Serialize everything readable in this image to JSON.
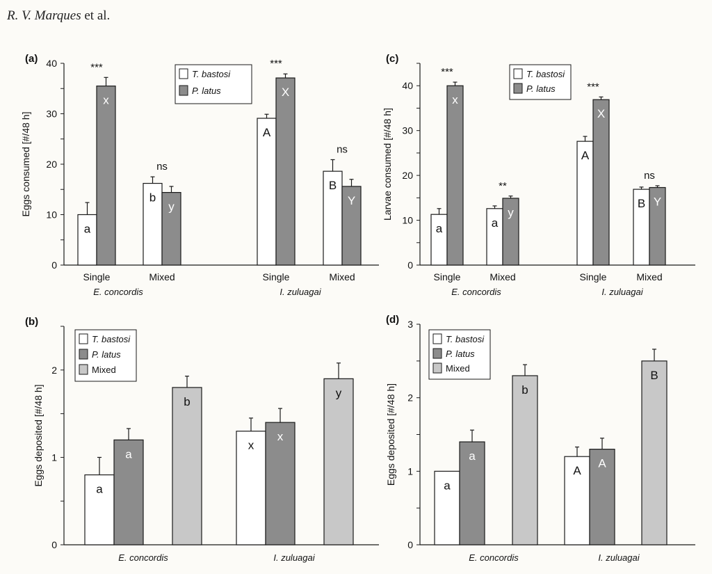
{
  "header": {
    "author": "R. V. Marques",
    "suffix": " et al."
  },
  "colors": {
    "t_bastosi": "#ffffff",
    "p_latus": "#8c8c8c",
    "mixed": "#c8c8c8",
    "stroke": "#1a1a1a",
    "background": "#fcfbf7"
  },
  "chart_data": [
    {
      "panel": "(a)",
      "type": "bar",
      "title": "",
      "ylabel": "Eggs consumed [#/48 h]",
      "ylim": [
        0,
        40
      ],
      "yticks": [
        0,
        10,
        20,
        30,
        40
      ],
      "groups": [
        "E. concordis",
        "I. zuluagai"
      ],
      "categories": [
        "Single",
        "Mixed",
        "Single",
        "Mixed"
      ],
      "legend": [
        {
          "name": "T. bastosi",
          "color": "#ffffff"
        },
        {
          "name": "P. latus",
          "color": "#8c8c8c"
        }
      ],
      "series": [
        {
          "name": "T. bastosi",
          "values": [
            10,
            16.2,
            29.1,
            18.6
          ],
          "errors": [
            2.4,
            1.3,
            0.8,
            2.3
          ],
          "labels": [
            "a",
            "b",
            "A",
            "B"
          ]
        },
        {
          "name": "P. latus",
          "values": [
            35.5,
            14.4,
            37.1,
            15.6
          ],
          "errors": [
            1.7,
            1.2,
            0.8,
            1.4
          ],
          "labels": [
            "x",
            "y",
            "X",
            "Y"
          ]
        }
      ],
      "significance": [
        "***",
        "ns",
        "***",
        "ns"
      ]
    },
    {
      "panel": "(c)",
      "type": "bar",
      "title": "",
      "ylabel": "Larvae consumed [#/48 h]",
      "ylim": [
        0,
        45
      ],
      "yticks": [
        0,
        10,
        20,
        30,
        40
      ],
      "groups": [
        "E. concordis",
        "I. zuluagai"
      ],
      "categories": [
        "Single",
        "Mixed",
        "Single",
        "Mixed"
      ],
      "legend": [
        {
          "name": "T. bastosi",
          "color": "#ffffff"
        },
        {
          "name": "P. latus",
          "color": "#8c8c8c"
        }
      ],
      "series": [
        {
          "name": "T. bastosi",
          "values": [
            11.3,
            12.6,
            27.6,
            16.9
          ],
          "errors": [
            1.3,
            0.6,
            1.1,
            0.5
          ],
          "labels": [
            "a",
            "a",
            "A",
            "B"
          ]
        },
        {
          "name": "P. latus",
          "values": [
            40,
            14.9,
            36.9,
            17.3
          ],
          "errors": [
            0.8,
            0.5,
            0.6,
            0.4
          ],
          "labels": [
            "x",
            "y",
            "X",
            "Y"
          ]
        }
      ],
      "significance": [
        "***",
        "**",
        "***",
        "ns"
      ]
    },
    {
      "panel": "(b)",
      "type": "bar",
      "title": "",
      "ylabel": "Eggs deposited [#/48 h]",
      "ylim": [
        0,
        2.5
      ],
      "yticks": [
        0,
        1,
        2
      ],
      "groups": [
        "E. concordis",
        "I. zuluagai"
      ],
      "legend": [
        {
          "name": "T. bastosi",
          "color": "#ffffff"
        },
        {
          "name": "P. latus",
          "color": "#8c8c8c"
        },
        {
          "name": "Mixed",
          "color": "#c8c8c8"
        }
      ],
      "series": [
        {
          "name": "T. bastosi",
          "values": [
            0.8,
            1.3
          ],
          "errors": [
            0.2,
            0.15
          ],
          "labels": [
            "a",
            "x"
          ]
        },
        {
          "name": "P. latus",
          "values": [
            1.2,
            1.4
          ],
          "errors": [
            0.13,
            0.16
          ],
          "labels": [
            "a",
            "x"
          ]
        },
        {
          "name": "Mixed",
          "values": [
            1.8,
            1.9
          ],
          "errors": [
            0.13,
            0.18
          ],
          "labels": [
            "b",
            "y"
          ]
        }
      ]
    },
    {
      "panel": "(d)",
      "type": "bar",
      "title": "",
      "ylabel": "Eggs deposited [#/48 h]",
      "ylim": [
        0,
        3
      ],
      "yticks": [
        0,
        1,
        2,
        3
      ],
      "groups": [
        "E. concordis",
        "I. zuluagai"
      ],
      "legend": [
        {
          "name": "T. bastosi",
          "color": "#ffffff"
        },
        {
          "name": "P. latus",
          "color": "#8c8c8c"
        },
        {
          "name": "Mixed",
          "color": "#c8c8c8"
        }
      ],
      "series": [
        {
          "name": "T. bastosi",
          "values": [
            1.0,
            1.2
          ],
          "errors": [
            0,
            0.13
          ],
          "labels": [
            "a",
            "A"
          ]
        },
        {
          "name": "P. latus",
          "values": [
            1.4,
            1.3
          ],
          "errors": [
            0.16,
            0.15
          ],
          "labels": [
            "a",
            "A"
          ]
        },
        {
          "name": "Mixed",
          "values": [
            2.3,
            2.5
          ],
          "errors": [
            0.15,
            0.16
          ],
          "labels": [
            "b",
            "B"
          ]
        }
      ]
    }
  ]
}
